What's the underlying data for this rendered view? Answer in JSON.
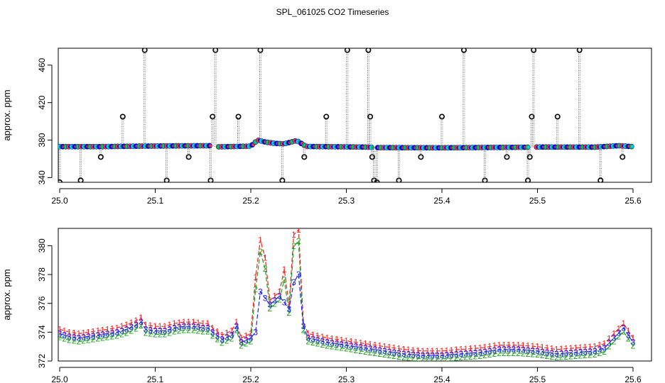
{
  "title": "SPL_061025  CO2 Timeseries",
  "chart_data": [
    {
      "type": "scatter",
      "panel": "top",
      "xlabel": "",
      "ylabel": "approx. ppm",
      "xlim": [
        25.0,
        25.6
      ],
      "ylim": [
        335,
        478
      ],
      "xticks": [
        25.0,
        25.1,
        25.2,
        25.3,
        25.4,
        25.5,
        25.6
      ],
      "xtick_labels": [
        "25.0",
        "25.1",
        "25.2",
        "25.3",
        "25.4",
        "25.5",
        "25.6"
      ],
      "yticks": [
        340,
        380,
        420,
        460
      ],
      "ytick_labels": [
        "340",
        "380",
        "420",
        "460"
      ],
      "grid": false,
      "base_series": [
        {
          "x": 25.0,
          "y": 373.0
        },
        {
          "x": 25.04,
          "y": 373.0
        },
        {
          "x": 25.08,
          "y": 373.5
        },
        {
          "x": 25.12,
          "y": 373.8
        },
        {
          "x": 25.157,
          "y": 374.0
        },
        {
          "x": 25.165,
          "y": 372.8
        },
        {
          "x": 25.185,
          "y": 373.2
        },
        {
          "x": 25.2,
          "y": 373.5
        },
        {
          "x": 25.207,
          "y": 380.0
        },
        {
          "x": 25.215,
          "y": 378.0
        },
        {
          "x": 25.225,
          "y": 376.5
        },
        {
          "x": 25.235,
          "y": 376.0
        },
        {
          "x": 25.248,
          "y": 379.5
        },
        {
          "x": 25.258,
          "y": 373.2
        },
        {
          "x": 25.3,
          "y": 372.8
        },
        {
          "x": 25.323,
          "y": 372.5
        },
        {
          "x": 25.33,
          "y": 372.0
        },
        {
          "x": 25.4,
          "y": 371.8
        },
        {
          "x": 25.49,
          "y": 372.4
        },
        {
          "x": 25.5,
          "y": 372.6
        },
        {
          "x": 25.56,
          "y": 372.5
        },
        {
          "x": 25.585,
          "y": 374.0
        },
        {
          "x": 25.6,
          "y": 373.0
        }
      ],
      "markers": {
        "fill": [
          "#00ccff",
          "#0000ff",
          "#22aa22",
          "#ff3333"
        ]
      },
      "outliers": [
        {
          "x": 25.0,
          "y": 335
        },
        {
          "x": 25.022,
          "y": 337
        },
        {
          "x": 25.043,
          "y": 362
        },
        {
          "x": 25.066,
          "y": 405
        },
        {
          "x": 25.089,
          "y": 476
        },
        {
          "x": 25.112,
          "y": 337
        },
        {
          "x": 25.135,
          "y": 362
        },
        {
          "x": 25.158,
          "y": 337
        },
        {
          "x": 25.16,
          "y": 405
        },
        {
          "x": 25.163,
          "y": 476
        },
        {
          "x": 25.187,
          "y": 405
        },
        {
          "x": 25.21,
          "y": 476
        },
        {
          "x": 25.233,
          "y": 337
        },
        {
          "x": 25.256,
          "y": 362
        },
        {
          "x": 25.279,
          "y": 405
        },
        {
          "x": 25.301,
          "y": 476
        },
        {
          "x": 25.323,
          "y": 476
        },
        {
          "x": 25.325,
          "y": 405
        },
        {
          "x": 25.327,
          "y": 362
        },
        {
          "x": 25.329,
          "y": 337
        },
        {
          "x": 25.332,
          "y": 335
        },
        {
          "x": 25.355,
          "y": 337
        },
        {
          "x": 25.378,
          "y": 362
        },
        {
          "x": 25.4,
          "y": 405
        },
        {
          "x": 25.423,
          "y": 476
        },
        {
          "x": 25.445,
          "y": 337
        },
        {
          "x": 25.468,
          "y": 362
        },
        {
          "x": 25.49,
          "y": 337
        },
        {
          "x": 25.492,
          "y": 362
        },
        {
          "x": 25.494,
          "y": 405
        },
        {
          "x": 25.496,
          "y": 476
        },
        {
          "x": 25.521,
          "y": 405
        },
        {
          "x": 25.544,
          "y": 476
        },
        {
          "x": 25.566,
          "y": 337
        },
        {
          "x": 25.589,
          "y": 362
        }
      ]
    },
    {
      "type": "line",
      "panel": "bottom",
      "xlabel": "",
      "ylabel": "approx. ppm",
      "xlim": [
        25.0,
        25.6
      ],
      "ylim": [
        372.0,
        381.2
      ],
      "xticks": [
        25.0,
        25.1,
        25.2,
        25.3,
        25.4,
        25.5,
        25.6
      ],
      "xtick_labels": [
        "25.0",
        "25.1",
        "25.2",
        "25.3",
        "25.4",
        "25.5",
        "25.6"
      ],
      "yticks": [
        372,
        374,
        376,
        378,
        380
      ],
      "ytick_labels": [
        "372",
        "374",
        "376",
        "378",
        "380"
      ],
      "grid": false,
      "series": [
        {
          "name": "1",
          "color": "#ff2020",
          "offset": 0.3
        },
        {
          "name": "2",
          "color": "#20a020",
          "offset": -0.25
        },
        {
          "name": "3",
          "color": "#2020ff",
          "offset": 0.0
        }
      ],
      "x": [
        25.0,
        25.01,
        25.02,
        25.03,
        25.04,
        25.05,
        25.06,
        25.07,
        25.08,
        25.085,
        25.09,
        25.1,
        25.11,
        25.12,
        25.13,
        25.14,
        25.15,
        25.155,
        25.16,
        25.17,
        25.18,
        25.185,
        25.19,
        25.2,
        25.205,
        25.21,
        25.22,
        25.225,
        25.23,
        25.24,
        25.247,
        25.25,
        25.255,
        25.26,
        25.28,
        25.3,
        25.32,
        25.34,
        25.36,
        25.38,
        25.4,
        25.42,
        25.44,
        25.46,
        25.48,
        25.5,
        25.52,
        25.54,
        25.56,
        25.57,
        25.58,
        25.59,
        25.6
      ],
      "y": [
        373.9,
        373.7,
        373.6,
        373.7,
        373.8,
        373.9,
        374.0,
        374.2,
        374.5,
        374.7,
        374.2,
        374.1,
        374.1,
        374.3,
        374.4,
        374.4,
        374.3,
        374.3,
        374.0,
        373.5,
        373.8,
        374.4,
        373.3,
        373.6,
        374.0,
        376.8,
        375.9,
        376.2,
        376.5,
        375.6,
        378.2,
        378.0,
        374.4,
        373.6,
        373.3,
        373.1,
        372.9,
        372.7,
        372.5,
        372.4,
        372.4,
        372.5,
        372.6,
        372.8,
        372.8,
        372.7,
        372.5,
        372.6,
        372.7,
        372.9,
        373.6,
        374.3,
        373.3
      ],
      "boosts": {
        "205": 3.5,
        "210": 3.3,
        "215": 2.5,
        "235": 2.0,
        "245": 3.0,
        "250": 2.8,
        "247": 2.4
      }
    }
  ]
}
